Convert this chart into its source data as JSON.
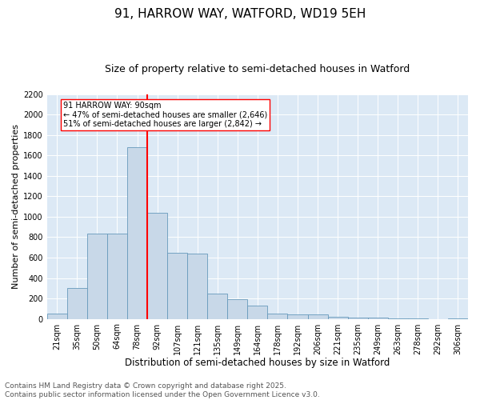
{
  "title1": "91, HARROW WAY, WATFORD, WD19 5EH",
  "title2": "Size of property relative to semi-detached houses in Watford",
  "xlabel": "Distribution of semi-detached houses by size in Watford",
  "ylabel": "Number of semi-detached properties",
  "bins": [
    "21sqm",
    "35sqm",
    "50sqm",
    "64sqm",
    "78sqm",
    "92sqm",
    "107sqm",
    "121sqm",
    "135sqm",
    "149sqm",
    "164sqm",
    "178sqm",
    "192sqm",
    "206sqm",
    "221sqm",
    "235sqm",
    "249sqm",
    "263sqm",
    "278sqm",
    "292sqm",
    "306sqm"
  ],
  "bar_values": [
    50,
    305,
    835,
    835,
    1685,
    1040,
    650,
    640,
    250,
    195,
    130,
    55,
    45,
    40,
    20,
    15,
    10,
    5,
    5,
    0,
    5
  ],
  "bar_color": "#c8d8e8",
  "bar_edge_color": "#6699bb",
  "property_line_color": "red",
  "annotation_text": "91 HARROW WAY: 90sqm\n← 47% of semi-detached houses are smaller (2,646)\n51% of semi-detached houses are larger (2,842) →",
  "annotation_box_color": "white",
  "annotation_box_edge": "red",
  "ylim": [
    0,
    2200
  ],
  "yticks": [
    0,
    200,
    400,
    600,
    800,
    1000,
    1200,
    1400,
    1600,
    1800,
    2000,
    2200
  ],
  "background_color": "#dce9f5",
  "footer_text": "Contains HM Land Registry data © Crown copyright and database right 2025.\nContains public sector information licensed under the Open Government Licence v3.0.",
  "title1_fontsize": 11,
  "title2_fontsize": 9,
  "xlabel_fontsize": 8.5,
  "ylabel_fontsize": 8,
  "tick_fontsize": 7,
  "footer_fontsize": 6.5,
  "property_line_bin_index": 4.5
}
